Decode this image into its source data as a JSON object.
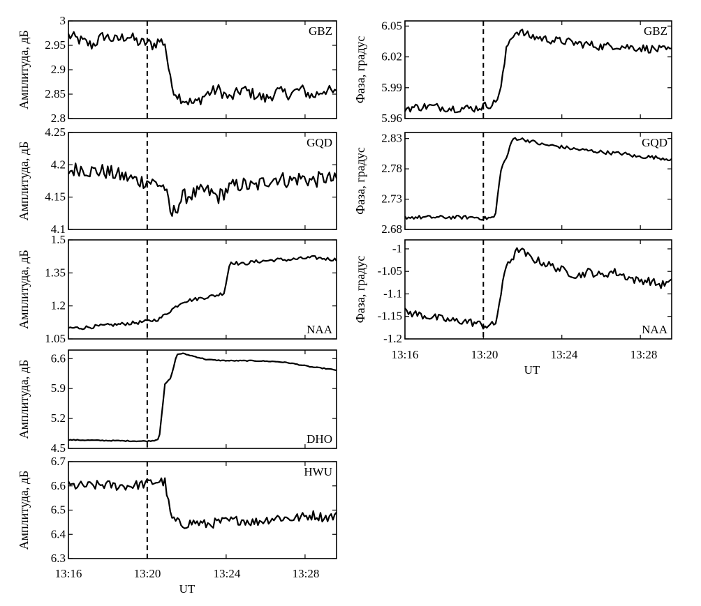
{
  "x_axis": {
    "ticks": [
      "13:16",
      "13:20",
      "13:24",
      "13:28"
    ],
    "tick_values": [
      13.2667,
      13.3333,
      13.4,
      13.4667
    ],
    "xlim": [
      13.2667,
      13.4933
    ],
    "label": "UT"
  },
  "event_marker_time": 13.3333,
  "line_color": "#000000",
  "chart_data": [
    {
      "type": "line",
      "panel": "amp-gbz",
      "station": "GBZ",
      "ylabel": "Амплитуда, дБ",
      "yticks": [
        "2.8",
        "2.85",
        "2.9",
        "2.95",
        "3"
      ],
      "ylim": [
        2.8,
        3.0
      ],
      "series": [
        {
          "x": [
            13.2667,
            13.2767,
            13.2867,
            13.2967,
            13.3067,
            13.3167,
            13.3267,
            13.3333,
            13.3383,
            13.3433,
            13.3483,
            13.3533,
            13.3583,
            13.3633,
            13.3733,
            13.3833,
            13.3933,
            13.4033,
            13.4133,
            13.4233,
            13.4333,
            13.4433,
            13.4533,
            13.4633,
            13.4733,
            13.4833,
            13.4933
          ],
          "y": [
            2.97,
            2.96,
            2.95,
            2.97,
            2.96,
            2.97,
            2.955,
            2.955,
            2.95,
            2.96,
            2.955,
            2.87,
            2.85,
            2.84,
            2.83,
            2.85,
            2.86,
            2.84,
            2.86,
            2.85,
            2.84,
            2.855,
            2.85,
            2.86,
            2.845,
            2.86,
            2.85
          ],
          "noise": 0.012
        }
      ]
    },
    {
      "type": "line",
      "panel": "amp-gqd",
      "station": "GQD",
      "ylabel": "Амплитуда, дБ",
      "yticks": [
        "4.1",
        "4.15",
        "4.2",
        "4.25"
      ],
      "ylim": [
        4.1,
        4.25
      ],
      "series": [
        {
          "x": [
            13.2667,
            13.2767,
            13.2867,
            13.2967,
            13.3067,
            13.3167,
            13.3267,
            13.3333,
            13.3433,
            13.3483,
            13.3533,
            13.3583,
            13.3633,
            13.3733,
            13.3833,
            13.3933,
            13.4033,
            13.4133,
            13.4233,
            13.4333,
            13.4433,
            13.4533,
            13.4633,
            13.4733,
            13.4833,
            13.4933
          ],
          "y": [
            4.19,
            4.195,
            4.19,
            4.19,
            4.185,
            4.18,
            4.175,
            4.175,
            4.17,
            4.165,
            4.12,
            4.135,
            4.15,
            4.155,
            4.16,
            4.15,
            4.165,
            4.17,
            4.165,
            4.175,
            4.18,
            4.175,
            4.18,
            4.175,
            4.18,
            4.175
          ],
          "noise": 0.012
        }
      ]
    },
    {
      "type": "line",
      "panel": "amp-naa",
      "station": "NAA",
      "ylabel": "Амплитуда, дБ",
      "yticks": [
        "1.05",
        "1.2",
        "1.35",
        "1.5"
      ],
      "ylim": [
        1.05,
        1.5
      ],
      "series": [
        {
          "x": [
            13.2667,
            13.2767,
            13.2867,
            13.2967,
            13.3067,
            13.3167,
            13.3267,
            13.3333,
            13.3433,
            13.3533,
            13.3633,
            13.3733,
            13.3833,
            13.3933,
            13.3983,
            13.4033,
            13.4133,
            13.4233,
            13.4333,
            13.4433,
            13.4533,
            13.4633,
            13.4733,
            13.4833,
            13.4933
          ],
          "y": [
            1.1,
            1.1,
            1.105,
            1.11,
            1.115,
            1.12,
            1.125,
            1.13,
            1.14,
            1.18,
            1.22,
            1.23,
            1.24,
            1.25,
            1.26,
            1.4,
            1.39,
            1.4,
            1.405,
            1.41,
            1.41,
            1.415,
            1.42,
            1.415,
            1.41
          ],
          "noise": 0.008
        }
      ]
    },
    {
      "type": "line",
      "panel": "amp-dho",
      "station": "DHO",
      "ylabel": "Амплитуда, дБ",
      "yticks": [
        "4.5",
        "5.2",
        "5.9",
        "6.6"
      ],
      "ylim": [
        4.5,
        6.8
      ],
      "series": [
        {
          "x": [
            13.2667,
            13.2867,
            13.3067,
            13.3267,
            13.3333,
            13.3383,
            13.3433,
            13.3483,
            13.3533,
            13.3583,
            13.3633,
            13.3733,
            13.3833,
            13.3933,
            13.4033,
            13.4133,
            13.4233,
            13.4333,
            13.4433,
            13.4533,
            13.4633,
            13.4733,
            13.4833,
            13.4933
          ],
          "y": [
            4.7,
            4.69,
            4.68,
            4.67,
            4.67,
            4.68,
            4.72,
            6.0,
            6.15,
            6.7,
            6.72,
            6.65,
            6.58,
            6.56,
            6.55,
            6.55,
            6.55,
            6.54,
            6.53,
            6.5,
            6.45,
            6.4,
            6.37,
            6.33
          ],
          "noise": 0.01
        }
      ]
    },
    {
      "type": "line",
      "panel": "amp-hwu",
      "station": "HWU",
      "ylabel": "Амплитуда, дБ",
      "yticks": [
        "6.3",
        "6.4",
        "6.5",
        "6.6",
        "6.7"
      ],
      "ylim": [
        6.3,
        6.7
      ],
      "series": [
        {
          "x": [
            13.2667,
            13.2767,
            13.2867,
            13.2967,
            13.3067,
            13.3167,
            13.3267,
            13.3333,
            13.3433,
            13.3483,
            13.3533,
            13.3583,
            13.3633,
            13.3733,
            13.3833,
            13.3933,
            13.4033,
            13.4133,
            13.4233,
            13.4333,
            13.4433,
            13.4533,
            13.4633,
            13.4733,
            13.4833,
            13.4933
          ],
          "y": [
            6.6,
            6.6,
            6.6,
            6.605,
            6.6,
            6.6,
            6.605,
            6.61,
            6.62,
            6.615,
            6.47,
            6.45,
            6.44,
            6.45,
            6.44,
            6.45,
            6.455,
            6.46,
            6.45,
            6.46,
            6.47,
            6.465,
            6.47,
            6.48,
            6.47,
            6.475
          ],
          "noise": 0.02
        }
      ]
    },
    {
      "type": "line",
      "panel": "phase-gbz",
      "station": "GBZ",
      "ylabel": "Фаза, градус",
      "yticks": [
        "5.96",
        "5.99",
        "6.02",
        "6.05"
      ],
      "ylim": [
        5.96,
        6.055
      ],
      "series": [
        {
          "x": [
            13.2667,
            13.2867,
            13.3067,
            13.3267,
            13.3333,
            13.3433,
            13.3483,
            13.3533,
            13.3583,
            13.3633,
            13.3733,
            13.3833,
            13.3933,
            13.4033,
            13.4133,
            13.4233,
            13.4333,
            13.4433,
            13.4533,
            13.4633,
            13.4733,
            13.4833,
            13.4933
          ],
          "y": [
            5.97,
            5.972,
            5.97,
            5.97,
            5.972,
            5.975,
            5.99,
            6.03,
            6.042,
            6.045,
            6.04,
            6.038,
            6.036,
            6.035,
            6.033,
            6.032,
            6.03,
            6.031,
            6.03,
            6.029,
            6.028,
            6.027,
            6.026
          ],
          "noise": 0.004
        }
      ]
    },
    {
      "type": "line",
      "panel": "phase-gqd",
      "station": "GQD",
      "ylabel": "Фаза, градус",
      "yticks": [
        "2.68",
        "2.73",
        "2.78",
        "2.83"
      ],
      "ylim": [
        2.68,
        2.84
      ],
      "series": [
        {
          "x": [
            13.2667,
            13.2867,
            13.3067,
            13.3267,
            13.3333,
            13.3433,
            13.3483,
            13.3533,
            13.3583,
            13.3633,
            13.3733,
            13.3833,
            13.3933,
            13.4033,
            13.4133,
            13.4233,
            13.4333,
            13.4433,
            13.4533,
            13.4633,
            13.4733,
            13.4833,
            13.4933
          ],
          "y": [
            2.7,
            2.7,
            2.7,
            2.7,
            2.698,
            2.7,
            2.78,
            2.8,
            2.83,
            2.83,
            2.826,
            2.82,
            2.818,
            2.815,
            2.812,
            2.81,
            2.808,
            2.806,
            2.805,
            2.8,
            2.8,
            2.798,
            2.796
          ],
          "noise": 0.003
        }
      ]
    },
    {
      "type": "line",
      "panel": "phase-naa",
      "station": "NAA",
      "ylabel": "Фаза, градус",
      "yticks": [
        "-1.2",
        "-1.15",
        "-1.1",
        "-1.05",
        "-1"
      ],
      "ylim": [
        -1.2,
        -0.98
      ],
      "series": [
        {
          "x": [
            13.2667,
            13.2767,
            13.2867,
            13.2967,
            13.3067,
            13.3167,
            13.3267,
            13.3333,
            13.3433,
            13.3483,
            13.3533,
            13.3583,
            13.3633,
            13.3733,
            13.3833,
            13.3933,
            13.4033,
            13.4133,
            13.4233,
            13.4333,
            13.4433,
            13.4533,
            13.4633,
            13.4733,
            13.4833,
            13.4933
          ],
          "y": [
            -1.14,
            -1.145,
            -1.15,
            -1.155,
            -1.16,
            -1.16,
            -1.165,
            -1.17,
            -1.17,
            -1.1,
            -1.03,
            -1.02,
            -1.0,
            -1.02,
            -1.03,
            -1.04,
            -1.05,
            -1.06,
            -1.05,
            -1.06,
            -1.05,
            -1.06,
            -1.07,
            -1.07,
            -1.08,
            -1.075
          ],
          "noise": 0.009
        }
      ]
    }
  ]
}
